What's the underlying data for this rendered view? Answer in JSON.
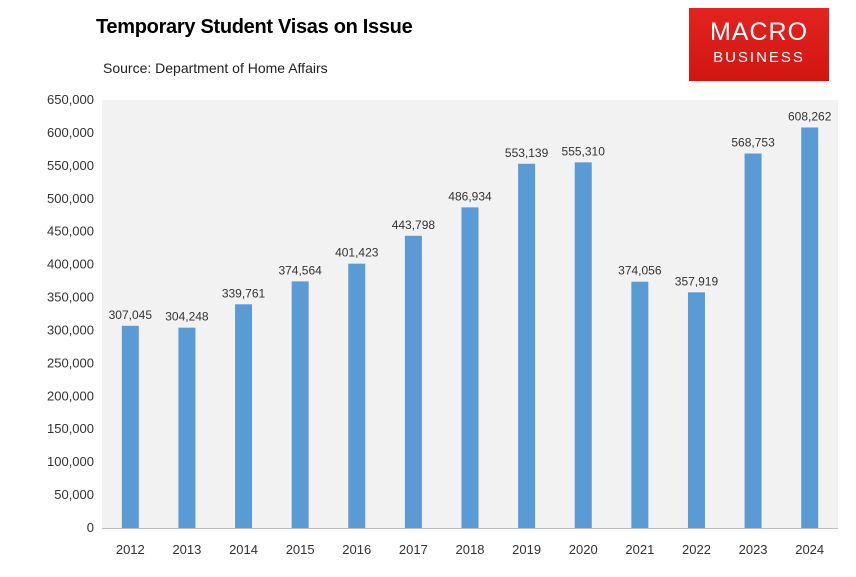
{
  "chart_data": {
    "type": "bar",
    "title": "Temporary Student Visas on Issue",
    "subtitle": "Source: Department of Home Affairs",
    "categories": [
      "2012",
      "2013",
      "2014",
      "2015",
      "2016",
      "2017",
      "2018",
      "2019",
      "2020",
      "2021",
      "2022",
      "2023",
      "2024"
    ],
    "values": [
      307045,
      304248,
      339761,
      374564,
      401423,
      443798,
      486934,
      553139,
      555310,
      374056,
      357919,
      568753,
      608262
    ],
    "value_labels": [
      "307,045",
      "304,248",
      "339,761",
      "374,564",
      "401,423",
      "443,798",
      "486,934",
      "553,139",
      "555,310",
      "374,056",
      "357,919",
      "568,753",
      "608,262"
    ],
    "ylim": [
      0,
      650000
    ],
    "yticks": [
      0,
      50000,
      100000,
      150000,
      200000,
      250000,
      300000,
      350000,
      400000,
      450000,
      500000,
      550000,
      600000,
      650000
    ],
    "ytick_labels": [
      "0",
      "50,000",
      "100,000",
      "150,000",
      "200,000",
      "250,000",
      "300,000",
      "350,000",
      "400,000",
      "450,000",
      "500,000",
      "550,000",
      "600,000",
      "650,000"
    ],
    "xlabel": "",
    "ylabel": "",
    "grid": false,
    "colors": {
      "bar": "#5b9bd5",
      "plot_background": "#f2f2f2"
    }
  },
  "logo": {
    "line1": "MACRO",
    "line2": "BUSINESS",
    "color": "#e02020"
  }
}
